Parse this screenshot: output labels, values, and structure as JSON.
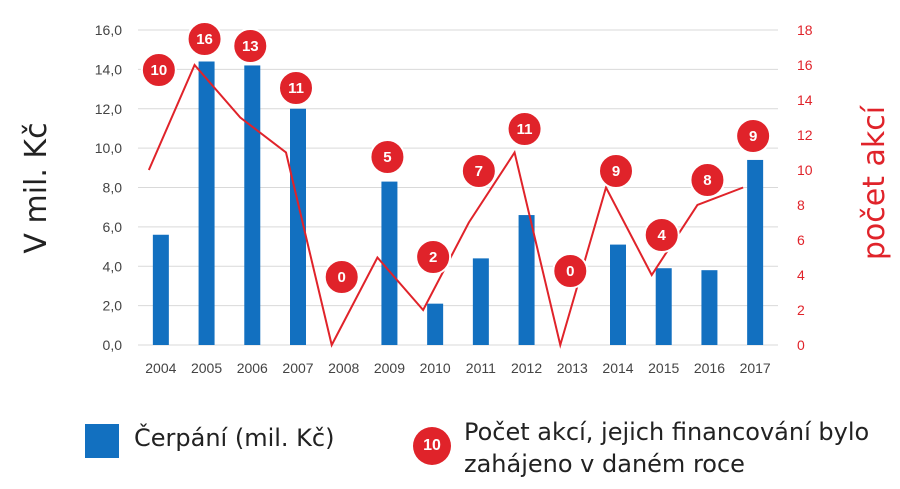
{
  "colors": {
    "bar": "#1270C0",
    "line": "#E0232A",
    "grid": "#D9D9D9",
    "text": "#444444"
  },
  "chart_data": {
    "type": "bar",
    "categories": [
      "2004",
      "2005",
      "2006",
      "2007",
      "2008",
      "2009",
      "2010",
      "2011",
      "2012",
      "2013",
      "2014",
      "2015",
      "2016",
      "2017"
    ],
    "series": [
      {
        "name": "Čerpání (mil. Kč)",
        "type": "bar",
        "axis": "left",
        "values": [
          5.6,
          14.4,
          14.2,
          12.0,
          0.0,
          8.3,
          2.1,
          4.4,
          6.6,
          0.0,
          5.1,
          3.9,
          3.8,
          9.4
        ]
      },
      {
        "name": "Počet akcí, jejich financování bylo zahájeno v daném roce",
        "type": "line",
        "axis": "right",
        "values": [
          10,
          16,
          13,
          11,
          0,
          5,
          2,
          7,
          11,
          0,
          9,
          4,
          8,
          9
        ],
        "labels": [
          "10",
          "16",
          "13",
          "11",
          "0",
          "5",
          "2",
          "7",
          "11",
          "0",
          "9",
          "4",
          "8",
          "9"
        ]
      }
    ],
    "ylabel": "V mil. Kč",
    "y2label": "počet akcí",
    "ylim": [
      0,
      16
    ],
    "y2lim": [
      0,
      18
    ],
    "yticks": [
      "0,0",
      "2,0",
      "4,0",
      "6,0",
      "8,0",
      "10,0",
      "12,0",
      "14,0",
      "16,0"
    ],
    "y2ticks": [
      "0",
      "2",
      "4",
      "6",
      "8",
      "10",
      "12",
      "14",
      "16",
      "18"
    ],
    "grid": true,
    "legend_position": "bottom"
  },
  "legend": {
    "bar_label": "Čerpání (mil. Kč)",
    "line_badge": "10",
    "line_label": "Počet akcí, jejich financování bylo zahájeno v daném roce"
  }
}
